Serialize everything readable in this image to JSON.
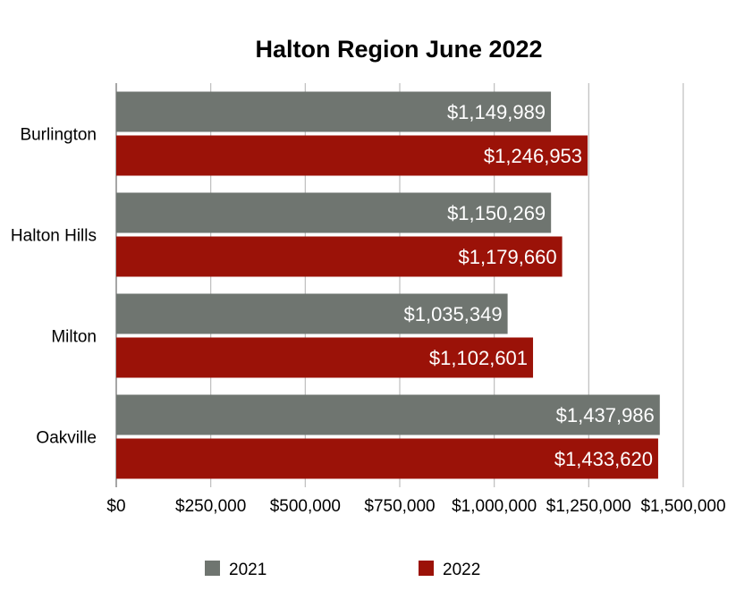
{
  "chart_data": {
    "type": "bar",
    "orientation": "horizontal",
    "title": "Halton Region June 2022",
    "categories": [
      "Burlington",
      "Halton Hills",
      "Milton",
      "Oakville"
    ],
    "series": [
      {
        "name": "2021",
        "color": "#6f7570",
        "values": [
          1149989,
          1150269,
          1035349,
          1437986
        ],
        "labels": [
          "$1,149,989",
          "$1,150,269",
          "$1,035,349",
          "$1,437,986"
        ]
      },
      {
        "name": "2022",
        "color": "#9b1208",
        "values": [
          1246953,
          1179660,
          1102601,
          1433620
        ],
        "labels": [
          "$1,246,953",
          "$1,179,660",
          "$1,102,601",
          "$1,433,620"
        ]
      }
    ],
    "xlim": [
      0,
      1500000
    ],
    "xticks": [
      0,
      250000,
      500000,
      750000,
      1000000,
      1250000,
      1500000
    ],
    "xtick_labels": [
      "$0",
      "$250,000",
      "$500,000",
      "$750,000",
      "$1,000,000",
      "$1,250,000",
      "$1,500,000"
    ],
    "grid": true,
    "legend_position": "bottom"
  }
}
